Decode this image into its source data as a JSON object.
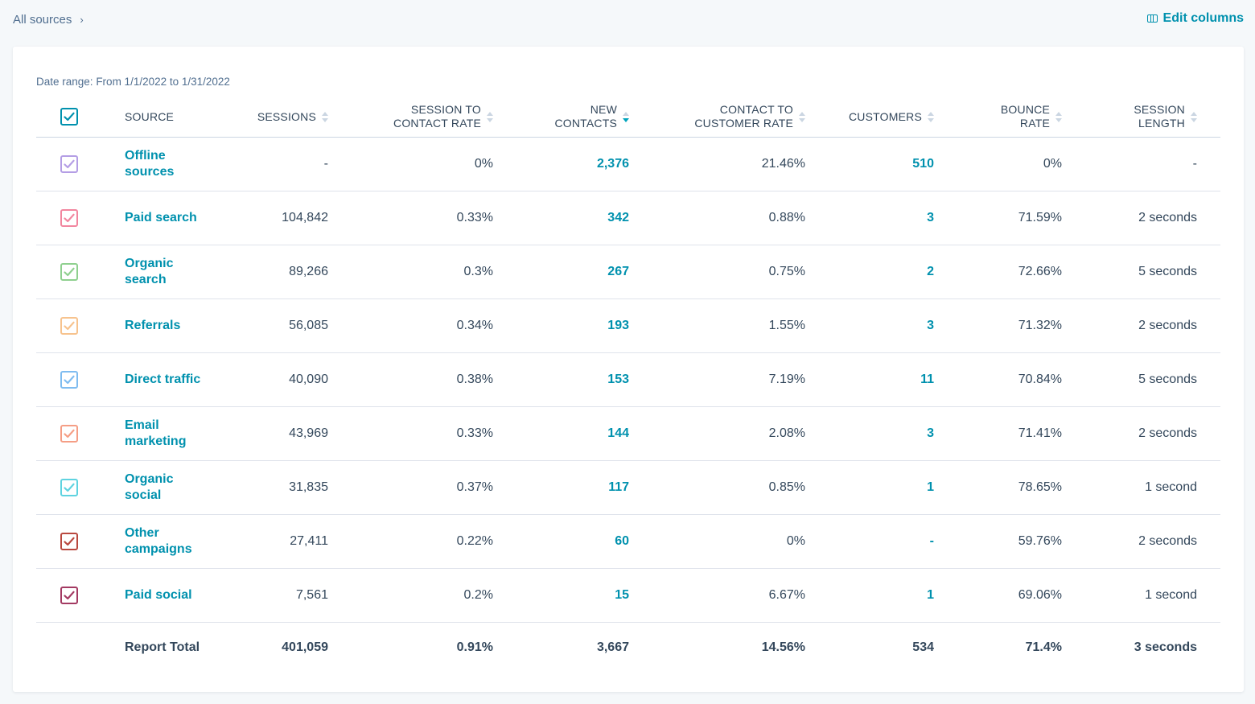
{
  "breadcrumb": {
    "label": "All sources"
  },
  "toolbar": {
    "edit_columns_label": "Edit columns"
  },
  "date_range": {
    "label": "Date range:",
    "value": "From 1/1/2022 to 1/31/2022"
  },
  "table": {
    "header": {
      "source": "SOURCE",
      "sessions": "SESSIONS",
      "session_to_contact_rate": [
        "SESSION TO",
        "CONTACT RATE"
      ],
      "new_contacts": [
        "NEW",
        "CONTACTS"
      ],
      "contact_to_customer_rate": [
        "CONTACT TO",
        "CUSTOMER RATE"
      ],
      "customers": "CUSTOMERS",
      "bounce_rate": [
        "BOUNCE",
        "RATE"
      ],
      "session_length": [
        "SESSION",
        "LENGTH"
      ],
      "checkbox_color": "#0091ae"
    },
    "rows": [
      {
        "source": [
          "Offline",
          "sources"
        ],
        "sessions": "-",
        "session_to_contact_rate": "0%",
        "new_contacts": "2,376",
        "contact_to_customer_rate": "21.46%",
        "customers": "510",
        "bounce_rate": "0%",
        "session_length": "-",
        "color": "#b49ee5"
      },
      {
        "source": [
          "Paid search"
        ],
        "sessions": "104,842",
        "session_to_contact_rate": "0.33%",
        "new_contacts": "342",
        "contact_to_customer_rate": "0.88%",
        "customers": "3",
        "bounce_rate": "71.59%",
        "session_length": "2 seconds",
        "color": "#f2869f"
      },
      {
        "source": [
          "Organic",
          "search"
        ],
        "sessions": "89,266",
        "session_to_contact_rate": "0.3%",
        "new_contacts": "267",
        "contact_to_customer_rate": "0.75%",
        "customers": "2",
        "bounce_rate": "72.66%",
        "session_length": "5 seconds",
        "color": "#8fd08f"
      },
      {
        "source": [
          "Referrals"
        ],
        "sessions": "56,085",
        "session_to_contact_rate": "0.34%",
        "new_contacts": "193",
        "contact_to_customer_rate": "1.55%",
        "customers": "3",
        "bounce_rate": "71.32%",
        "session_length": "2 seconds",
        "color": "#f7c38e"
      },
      {
        "source": [
          "Direct traffic"
        ],
        "sessions": "40,090",
        "session_to_contact_rate": "0.38%",
        "new_contacts": "153",
        "contact_to_customer_rate": "7.19%",
        "customers": "11",
        "bounce_rate": "70.84%",
        "session_length": "5 seconds",
        "color": "#7fbcf0"
      },
      {
        "source": [
          "Email",
          "marketing"
        ],
        "sessions": "43,969",
        "session_to_contact_rate": "0.33%",
        "new_contacts": "144",
        "contact_to_customer_rate": "2.08%",
        "customers": "3",
        "bounce_rate": "71.41%",
        "session_length": "2 seconds",
        "color": "#f59e85"
      },
      {
        "source": [
          "Organic",
          "social"
        ],
        "sessions": "31,835",
        "session_to_contact_rate": "0.37%",
        "new_contacts": "117",
        "contact_to_customer_rate": "0.85%",
        "customers": "1",
        "bounce_rate": "78.65%",
        "session_length": "1 second",
        "color": "#5fd3e0"
      },
      {
        "source": [
          "Other",
          "campaigns"
        ],
        "sessions": "27,411",
        "session_to_contact_rate": "0.22%",
        "new_contacts": "60",
        "contact_to_customer_rate": "0%",
        "customers": "-",
        "bounce_rate": "59.76%",
        "session_length": "2 seconds",
        "color": "#b9483f"
      },
      {
        "source": [
          "Paid social"
        ],
        "sessions": "7,561",
        "session_to_contact_rate": "0.2%",
        "new_contacts": "15",
        "contact_to_customer_rate": "6.67%",
        "customers": "1",
        "bounce_rate": "69.06%",
        "session_length": "1 second",
        "color": "#a33a62"
      }
    ],
    "total": {
      "label": "Report Total",
      "sessions": "401,059",
      "session_to_contact_rate": "0.91%",
      "new_contacts": "3,667",
      "contact_to_customer_rate": "14.56%",
      "customers": "534",
      "bounce_rate": "71.4%",
      "session_length": "3 seconds"
    }
  }
}
